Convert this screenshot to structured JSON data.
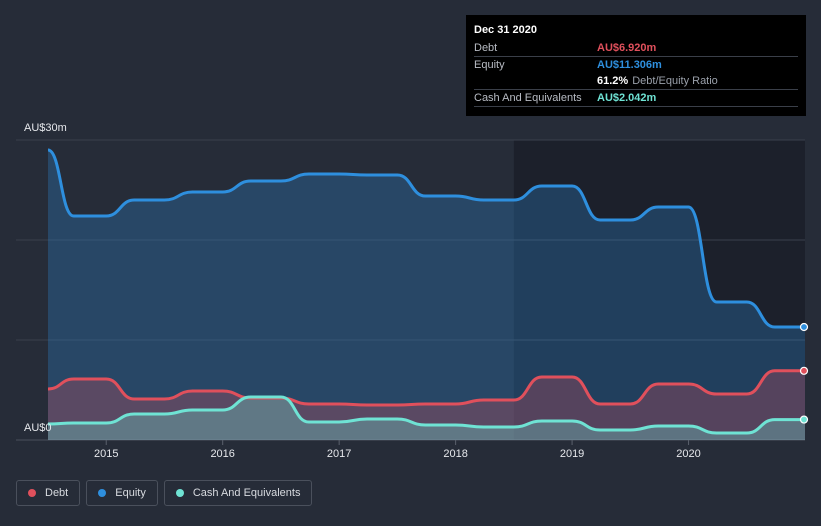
{
  "tooltip": {
    "date": "Dec 31 2020",
    "debt_label": "Debt",
    "debt_value": "AU$6.920m",
    "equity_label": "Equity",
    "equity_value": "AU$11.306m",
    "ratio_value": "61.2%",
    "ratio_label": "Debt/Equity Ratio",
    "cash_label": "Cash And Equivalents",
    "cash_value": "AU$2.042m"
  },
  "legend": {
    "debt": "Debt",
    "equity": "Equity",
    "cash": "Cash And Equivalents"
  },
  "colors": {
    "debt": "#e0505c",
    "equity": "#2e8fde",
    "cash": "#6fe3d4",
    "background": "#262c38",
    "plot_highlight": "#1b1f29"
  },
  "chart_data": {
    "type": "area",
    "ylim": [
      0,
      30
    ],
    "y_tick_labels": [
      "AU$30m",
      "AU$0"
    ],
    "x_tick_labels": [
      "2015",
      "2016",
      "2017",
      "2018",
      "2019",
      "2020"
    ],
    "x_ticks": [
      2015.0,
      2016.0,
      2017.0,
      2018.0,
      2019.0,
      2020.0
    ],
    "xlim": [
      2014.5,
      2021.0
    ],
    "grid": true,
    "legend_position": "bottom-left",
    "series": [
      {
        "name": "Equity",
        "points": [
          [
            2014.5,
            29.0
          ],
          [
            2014.72,
            22.4
          ],
          [
            2015.0,
            22.4
          ],
          [
            2015.24,
            24.0
          ],
          [
            2015.5,
            24.0
          ],
          [
            2015.74,
            24.8
          ],
          [
            2016.0,
            24.8
          ],
          [
            2016.24,
            25.9
          ],
          [
            2016.5,
            25.9
          ],
          [
            2016.74,
            26.6
          ],
          [
            2017.0,
            26.6
          ],
          [
            2017.24,
            26.5
          ],
          [
            2017.5,
            26.5
          ],
          [
            2017.74,
            24.4
          ],
          [
            2018.0,
            24.4
          ],
          [
            2018.24,
            24.0
          ],
          [
            2018.5,
            24.0
          ],
          [
            2018.74,
            25.4
          ],
          [
            2019.0,
            25.4
          ],
          [
            2019.24,
            22.0
          ],
          [
            2019.5,
            22.0
          ],
          [
            2019.74,
            23.3
          ],
          [
            2020.0,
            23.3
          ],
          [
            2020.24,
            13.8
          ],
          [
            2020.5,
            13.8
          ],
          [
            2020.74,
            11.3
          ],
          [
            2021.0,
            11.3
          ]
        ]
      },
      {
        "name": "Debt",
        "points": [
          [
            2014.5,
            5.1
          ],
          [
            2014.72,
            6.1
          ],
          [
            2015.0,
            6.1
          ],
          [
            2015.24,
            4.1
          ],
          [
            2015.5,
            4.1
          ],
          [
            2015.74,
            4.9
          ],
          [
            2016.0,
            4.9
          ],
          [
            2016.24,
            4.2
          ],
          [
            2016.5,
            4.2
          ],
          [
            2016.74,
            3.6
          ],
          [
            2017.0,
            3.6
          ],
          [
            2017.24,
            3.5
          ],
          [
            2017.5,
            3.5
          ],
          [
            2017.74,
            3.6
          ],
          [
            2018.0,
            3.6
          ],
          [
            2018.24,
            4.0
          ],
          [
            2018.5,
            4.0
          ],
          [
            2018.74,
            6.3
          ],
          [
            2019.0,
            6.3
          ],
          [
            2019.24,
            3.6
          ],
          [
            2019.5,
            3.6
          ],
          [
            2019.74,
            5.6
          ],
          [
            2020.0,
            5.6
          ],
          [
            2020.24,
            4.6
          ],
          [
            2020.5,
            4.6
          ],
          [
            2020.74,
            6.92
          ],
          [
            2021.0,
            6.92
          ]
        ]
      },
      {
        "name": "Cash And Equivalents",
        "points": [
          [
            2014.5,
            1.6
          ],
          [
            2014.72,
            1.7
          ],
          [
            2015.0,
            1.7
          ],
          [
            2015.24,
            2.6
          ],
          [
            2015.5,
            2.6
          ],
          [
            2015.74,
            3.0
          ],
          [
            2016.0,
            3.0
          ],
          [
            2016.24,
            4.3
          ],
          [
            2016.5,
            4.3
          ],
          [
            2016.74,
            1.8
          ],
          [
            2017.0,
            1.8
          ],
          [
            2017.24,
            2.1
          ],
          [
            2017.5,
            2.1
          ],
          [
            2017.74,
            1.5
          ],
          [
            2018.0,
            1.5
          ],
          [
            2018.24,
            1.3
          ],
          [
            2018.5,
            1.3
          ],
          [
            2018.74,
            1.9
          ],
          [
            2019.0,
            1.9
          ],
          [
            2019.24,
            1.0
          ],
          [
            2019.5,
            1.0
          ],
          [
            2019.74,
            1.4
          ],
          [
            2020.0,
            1.4
          ],
          [
            2020.24,
            0.7
          ],
          [
            2020.5,
            0.7
          ],
          [
            2020.74,
            2.042
          ],
          [
            2021.0,
            2.042
          ]
        ]
      }
    ]
  }
}
